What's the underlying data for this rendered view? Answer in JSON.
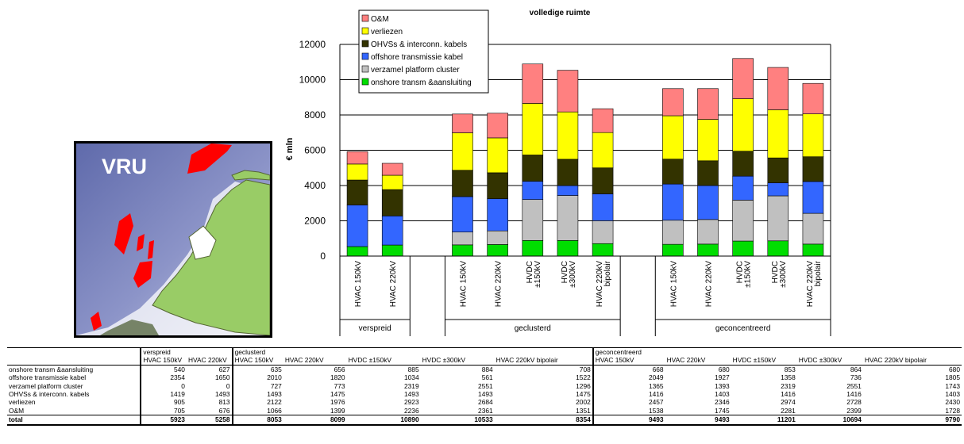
{
  "map": {
    "label": "VRU"
  },
  "chart_data": {
    "type": "bar",
    "stacked": true,
    "title": "volledige ruimte",
    "ylabel": "€ mln",
    "ylim": [
      0,
      12000
    ],
    "yticks": [
      "0",
      "2000",
      "4000",
      "6000",
      "8000",
      "10000",
      "12000"
    ],
    "grid": "horizontal",
    "legend_position": "top-left",
    "categories": [
      {
        "label": "HVAC 150kV",
        "group": 0
      },
      {
        "label": "HVAC 220kV",
        "group": 0
      },
      {
        "label": "HVAC 150kV",
        "group": 1
      },
      {
        "label": "HVAC 220kV",
        "group": 1
      },
      {
        "label": "HVDC ±150kV",
        "group": 1
      },
      {
        "label": "HVDC ±300kV",
        "group": 1
      },
      {
        "label": "HVAC 220kV bipolair",
        "group": 1
      },
      {
        "label": "HVAC 150kV",
        "group": 2
      },
      {
        "label": "HVAC 220kV",
        "group": 2
      },
      {
        "label": "HVDC ±150kV",
        "group": 2
      },
      {
        "label": "HVDC ±300kV",
        "group": 2
      },
      {
        "label": "HVAC 220kV bipolair",
        "group": 2
      }
    ],
    "groups": [
      "verspreid",
      "geclusterd",
      "geconcentreerd"
    ],
    "series": [
      {
        "name": "onshore transm &aansluiting",
        "color": "#00dd00",
        "values": [
          540,
          627,
          635,
          656,
          885,
          884,
          708,
          668,
          680,
          853,
          864,
          680
        ]
      },
      {
        "name": "verzamel platform cluster",
        "color": "#c0c0c0",
        "values": [
          0,
          0,
          727,
          773,
          2319,
          2551,
          1296,
          1365,
          1393,
          2319,
          2551,
          1743
        ]
      },
      {
        "name": "offshore transmissie kabel",
        "color": "#3366ff",
        "values": [
          2354,
          1650,
          2010,
          1820,
          1034,
          561,
          1522,
          2049,
          1927,
          1358,
          736,
          1805
        ]
      },
      {
        "name": "OHVSs & interconn. kabels",
        "color": "#333300",
        "values": [
          1419,
          1493,
          1493,
          1475,
          1493,
          1493,
          1475,
          1416,
          1403,
          1416,
          1416,
          1403
        ]
      },
      {
        "name": "verliezen",
        "color": "#ffff00",
        "values": [
          905,
          813,
          2122,
          1976,
          2923,
          2684,
          2002,
          2457,
          2346,
          2974,
          2728,
          2430
        ]
      },
      {
        "name": "O&M",
        "color": "#ff8080",
        "values": [
          705,
          676,
          1066,
          1399,
          2236,
          2361,
          1351,
          1538,
          1745,
          2281,
          2399,
          1728
        ]
      }
    ],
    "legend_order": [
      "O&M",
      "verliezen",
      "OHVSs & interconn. kabels",
      "offshore transmissie kabel",
      "verzamel platform cluster",
      "onshore transm &aansluiting"
    ]
  },
  "table": {
    "groups": [
      "verspreid",
      "geclusterd",
      "geconcentreerd"
    ],
    "group_columns": [
      [
        "HVAC 150kV",
        "HVAC 220kV"
      ],
      [
        "HVAC 150kV",
        "HVAC 220kV",
        "HVDC ±150kV",
        "HVDC ±300kV",
        "HVAC 220kV bipolair"
      ],
      [
        "HVAC 150kV",
        "HVAC 220kV",
        "HVDC ±150kV",
        "HVDC ±300kV",
        "HVAC 220kV bipolair"
      ]
    ],
    "rows": [
      {
        "label": "onshore transm &aansluiting",
        "values": [
          "540",
          "627",
          "635",
          "656",
          "885",
          "884",
          "708",
          "668",
          "680",
          "853",
          "864",
          "680"
        ]
      },
      {
        "label": "offshore transmissie kabel",
        "values": [
          "2354",
          "1650",
          "2010",
          "1820",
          "1034",
          "561",
          "1522",
          "2049",
          "1927",
          "1358",
          "736",
          "1805"
        ]
      },
      {
        "label": "verzamel platform cluster",
        "values": [
          "0",
          "0",
          "727",
          "773",
          "2319",
          "2551",
          "1296",
          "1365",
          "1393",
          "2319",
          "2551",
          "1743"
        ]
      },
      {
        "label": "OHVSs & interconn. kabels",
        "values": [
          "1419",
          "1493",
          "1493",
          "1475",
          "1493",
          "1493",
          "1475",
          "1416",
          "1403",
          "1416",
          "1416",
          "1403"
        ]
      },
      {
        "label": "verliezen",
        "values": [
          "905",
          "813",
          "2122",
          "1976",
          "2923",
          "2684",
          "2002",
          "2457",
          "2346",
          "2974",
          "2728",
          "2430"
        ]
      },
      {
        "label": "O&M",
        "values": [
          "705",
          "676",
          "1066",
          "1399",
          "2236",
          "2361",
          "1351",
          "1538",
          "1745",
          "2281",
          "2399",
          "1728"
        ]
      }
    ],
    "total": {
      "label": "total",
      "values": [
        "5923",
        "5258",
        "8053",
        "8099",
        "10890",
        "10533",
        "8354",
        "9493",
        "9493",
        "11201",
        "10694",
        "9790"
      ]
    }
  }
}
